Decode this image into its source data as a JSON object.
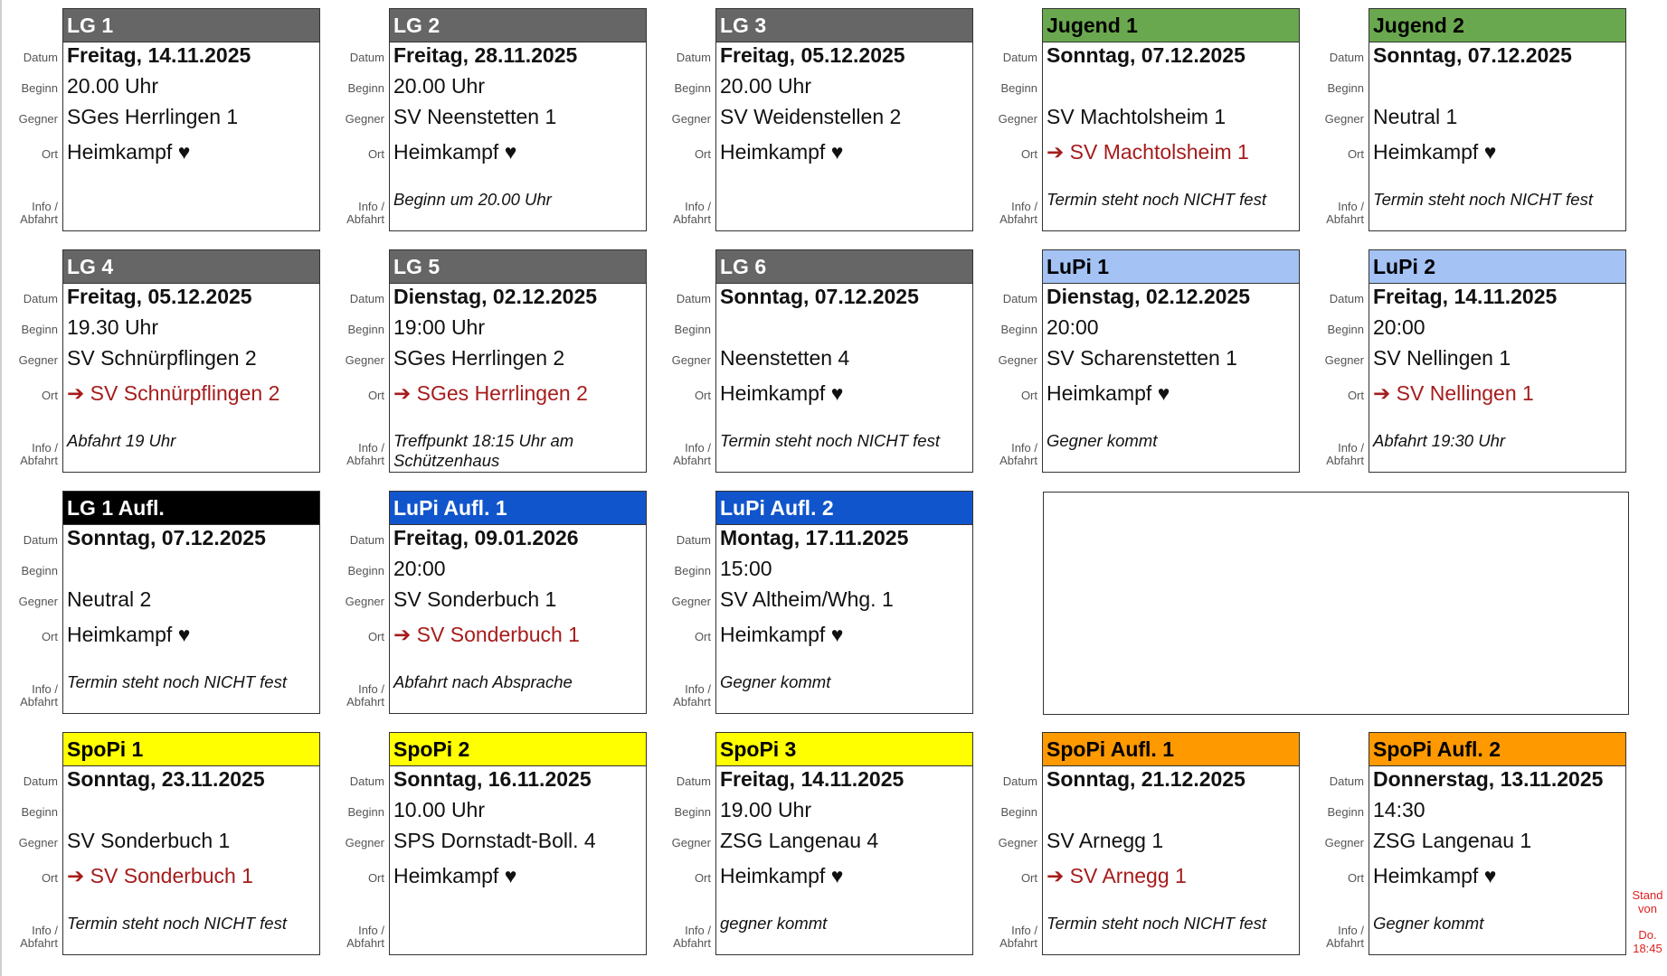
{
  "labels": {
    "datum": "Datum",
    "beginn": "Beginn",
    "gegner": "Gegner",
    "ort": "Ort",
    "info_1": "Info /",
    "info_2": "Abfahrt"
  },
  "colors": {
    "gray": "#666666",
    "green": "#6aa84f",
    "lightblue": "#a4c2f4",
    "black": "#000000",
    "blue": "#1155cc",
    "yellow": "#ffff00",
    "orange": "#ff9900",
    "away_text": "#a61c1c"
  },
  "cards": [
    {
      "title": "LG 1",
      "color": "gray",
      "datum": "Freitag, 14.11.2025",
      "beginn": "20.00 Uhr",
      "gegner": "SGes Herrlingen 1",
      "ort": "Heimkampf ♥",
      "away": false,
      "info": ""
    },
    {
      "title": "LG 2",
      "color": "gray",
      "datum": "Freitag, 28.11.2025",
      "beginn": "20.00 Uhr",
      "gegner": "SV Neenstetten 1",
      "ort": "Heimkampf ♥",
      "away": false,
      "info": "Beginn um 20.00 Uhr"
    },
    {
      "title": "LG 3",
      "color": "gray",
      "datum": "Freitag, 05.12.2025",
      "beginn": "20.00 Uhr",
      "gegner": "SV Weidenstellen 2",
      "ort": "Heimkampf ♥",
      "away": false,
      "info": ""
    },
    {
      "title": "Jugend 1",
      "color": "green",
      "datum": "Sonntag, 07.12.2025",
      "beginn": "",
      "gegner": "SV Machtolsheim 1",
      "ort": "➔ SV Machtolsheim 1",
      "away": true,
      "info": "Termin steht noch NICHT fest"
    },
    {
      "title": "Jugend 2",
      "color": "green",
      "datum": "Sonntag, 07.12.2025",
      "beginn": "",
      "gegner": "Neutral 1",
      "ort": "Heimkampf ♥",
      "away": false,
      "info": "Termin steht noch NICHT fest"
    },
    {
      "title": "LG 4",
      "color": "gray",
      "datum": "Freitag, 05.12.2025",
      "beginn": "19.30 Uhr",
      "gegner": "SV Schnürpflingen 2",
      "ort": "➔ SV Schnürpflingen 2",
      "away": true,
      "info": "Abfahrt 19 Uhr"
    },
    {
      "title": "LG 5",
      "color": "gray",
      "datum": "Dienstag, 02.12.2025",
      "beginn": "19:00 Uhr",
      "gegner": "SGes Herrlingen 2",
      "ort": "➔ SGes Herrlingen 2",
      "away": true,
      "info": "Treffpunkt 18:15 Uhr am Schützenhaus"
    },
    {
      "title": "LG 6",
      "color": "gray",
      "datum": "Sonntag, 07.12.2025",
      "beginn": "",
      "gegner": "Neenstetten 4",
      "ort": "Heimkampf ♥",
      "away": false,
      "info": "Termin steht noch NICHT fest"
    },
    {
      "title": "LuPi 1",
      "color": "lightblue",
      "datum": "Dienstag, 02.12.2025",
      "beginn": "20:00",
      "gegner": "SV Scharenstetten 1",
      "ort": "Heimkampf ♥",
      "away": false,
      "info": "Gegner kommt"
    },
    {
      "title": "LuPi 2",
      "color": "lightblue",
      "datum": "Freitag, 14.11.2025",
      "beginn": "20:00",
      "gegner": "SV Nellingen 1",
      "ort": "➔ SV Nellingen 1",
      "away": true,
      "info": "Abfahrt 19:30 Uhr"
    },
    {
      "title": "LG 1 Aufl.",
      "color": "black",
      "datum": "Sonntag, 07.12.2025",
      "beginn": "",
      "gegner": "Neutral 2",
      "ort": "Heimkampf ♥",
      "away": false,
      "info": "Termin steht noch NICHT fest"
    },
    {
      "title": "LuPi Aufl. 1",
      "color": "blue",
      "datum": "Freitag, 09.01.2026",
      "beginn": "20:00",
      "gegner": "SV Sonderbuch 1",
      "ort": "➔ SV Sonderbuch 1",
      "away": true,
      "info": "Abfahrt nach Absprache"
    },
    {
      "title": "LuPi Aufl. 2",
      "color": "blue",
      "datum": "Montag, 17.11.2025",
      "beginn": "15:00",
      "gegner": "SV Altheim/Whg. 1",
      "ort": "Heimkampf ♥",
      "away": false,
      "info": "Gegner kommt"
    },
    {
      "title": "SpoPi 1",
      "color": "yellow",
      "datum": "Sonntag, 23.11.2025",
      "beginn": "",
      "gegner": "SV Sonderbuch 1",
      "ort": "➔ SV Sonderbuch 1",
      "away": true,
      "info": "Termin steht noch NICHT fest"
    },
    {
      "title": "SpoPi 2",
      "color": "yellow",
      "datum": "Sonntag, 16.11.2025",
      "beginn": "10.00 Uhr",
      "gegner": "SPS Dornstadt-Boll. 4",
      "ort": "Heimkampf ♥",
      "away": false,
      "info": ""
    },
    {
      "title": "SpoPi 3",
      "color": "yellow",
      "datum": "Freitag, 14.11.2025",
      "beginn": "19.00 Uhr",
      "gegner": "ZSG Langenau 4",
      "ort": "Heimkampf ♥",
      "away": false,
      "info": "gegner kommt"
    },
    {
      "title": "SpoPi Aufl. 1",
      "color": "orange",
      "datum": "Sonntag, 21.12.2025",
      "beginn": "",
      "gegner": "SV Arnegg 1",
      "ort": "➔ SV Arnegg 1",
      "away": true,
      "info": "Termin steht noch NICHT fest"
    },
    {
      "title": "SpoPi Aufl. 2",
      "color": "orange",
      "datum": "Donnerstag, 13.11.2025",
      "beginn": "14:30",
      "gegner": "ZSG Langenau 1",
      "ort": "Heimkampf ♥",
      "away": false,
      "info": "Gegner kommt"
    }
  ],
  "stand": {
    "line1": "Stand",
    "line2": "von",
    "line3": "Do.",
    "line4": "18:45"
  }
}
